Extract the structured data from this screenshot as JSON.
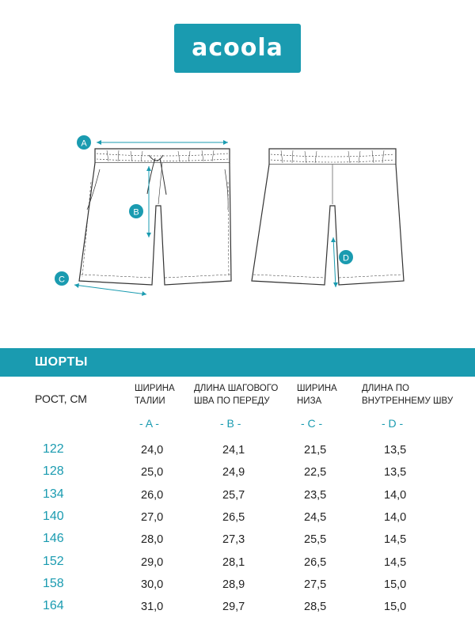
{
  "brand": {
    "logo_text": "acoola",
    "accent_color": "#1a9bb0"
  },
  "drawing": {
    "markers": {
      "A": "A",
      "B": "B",
      "C": "C",
      "D": "D"
    }
  },
  "table": {
    "title": "ШОРТЫ",
    "row_header": "РОСТ, СМ",
    "columns": [
      {
        "line1": "ШИРИНА",
        "line2": "ТАЛИИ",
        "code": "- A -"
      },
      {
        "line1": "ДЛИНА ШАГОВОГО",
        "line2": "ШВА ПО ПЕРЕДУ",
        "code": "- B -"
      },
      {
        "line1": "ШИРИНА",
        "line2": "НИЗА",
        "code": "- C -"
      },
      {
        "line1": "ДЛИНА ПО",
        "line2": "ВНУТРЕННЕМУ ШВУ",
        "code": "- D -"
      }
    ],
    "rows": [
      {
        "size": "122",
        "values": [
          "24,0",
          "24,1",
          "21,5",
          "13,5"
        ]
      },
      {
        "size": "128",
        "values": [
          "25,0",
          "24,9",
          "22,5",
          "13,5"
        ]
      },
      {
        "size": "134",
        "values": [
          "26,0",
          "25,7",
          "23,5",
          "14,0"
        ]
      },
      {
        "size": "140",
        "values": [
          "27,0",
          "26,5",
          "24,5",
          "14,0"
        ]
      },
      {
        "size": "146",
        "values": [
          "28,0",
          "27,3",
          "25,5",
          "14,5"
        ]
      },
      {
        "size": "152",
        "values": [
          "29,0",
          "28,1",
          "26,5",
          "14,5"
        ]
      },
      {
        "size": "158",
        "values": [
          "30,0",
          "28,9",
          "27,5",
          "15,0"
        ]
      },
      {
        "size": "164",
        "values": [
          "31,0",
          "29,7",
          "28,5",
          "15,0"
        ]
      }
    ]
  }
}
